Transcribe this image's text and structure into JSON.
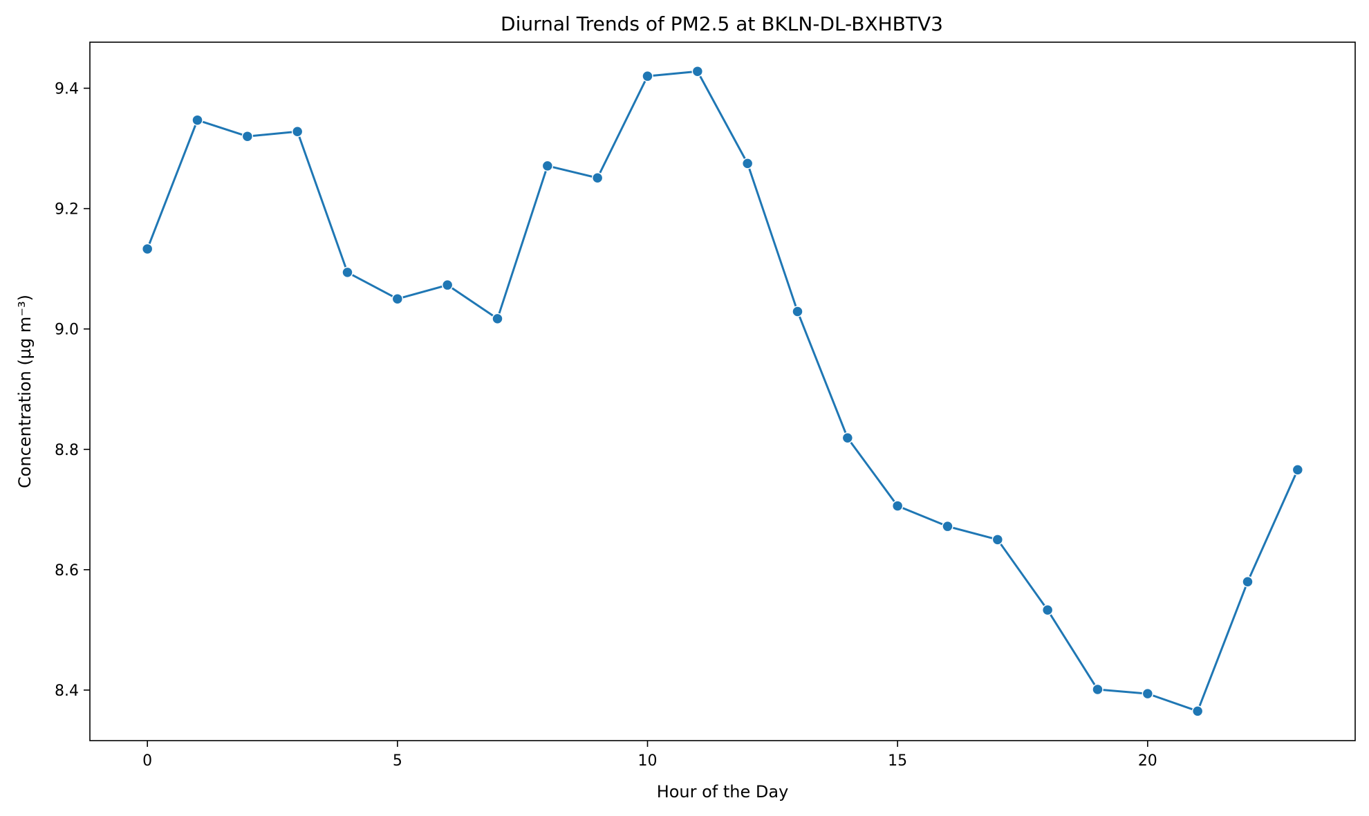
{
  "chart_data": {
    "type": "line",
    "title": "Diurnal Trends of PM2.5 at BKLN-DL-BXHBTV3",
    "xlabel": "Hour of the Day",
    "ylabel": "Concentration (µg m⁻³)",
    "x": [
      0,
      1,
      2,
      3,
      4,
      5,
      6,
      7,
      8,
      9,
      10,
      11,
      12,
      13,
      14,
      15,
      16,
      17,
      18,
      19,
      20,
      21,
      22,
      23
    ],
    "series": [
      {
        "values": [
          9.133,
          9.347,
          9.32,
          9.328,
          9.094,
          9.05,
          9.073,
          9.017,
          9.271,
          9.251,
          9.42,
          9.428,
          9.275,
          9.029,
          8.819,
          8.706,
          8.672,
          8.65,
          8.533,
          8.401,
          8.394,
          8.365,
          8.58,
          8.766
        ],
        "color": "#1f77b4"
      }
    ],
    "xlim": [
      -1.15,
      24.15
    ],
    "ylim": [
      8.316,
      9.4765
    ],
    "xticks": [
      0,
      5,
      10,
      15,
      20
    ],
    "xtick_labels": [
      "0",
      "5",
      "10",
      "15",
      "20"
    ],
    "yticks": [
      8.4,
      8.6,
      8.8,
      9.0,
      9.2,
      9.4
    ],
    "ytick_labels": [
      "8.4",
      "8.6",
      "8.8",
      "9.0",
      "9.2",
      "9.4"
    ],
    "grid": false,
    "legend": false,
    "marker": "circle"
  }
}
